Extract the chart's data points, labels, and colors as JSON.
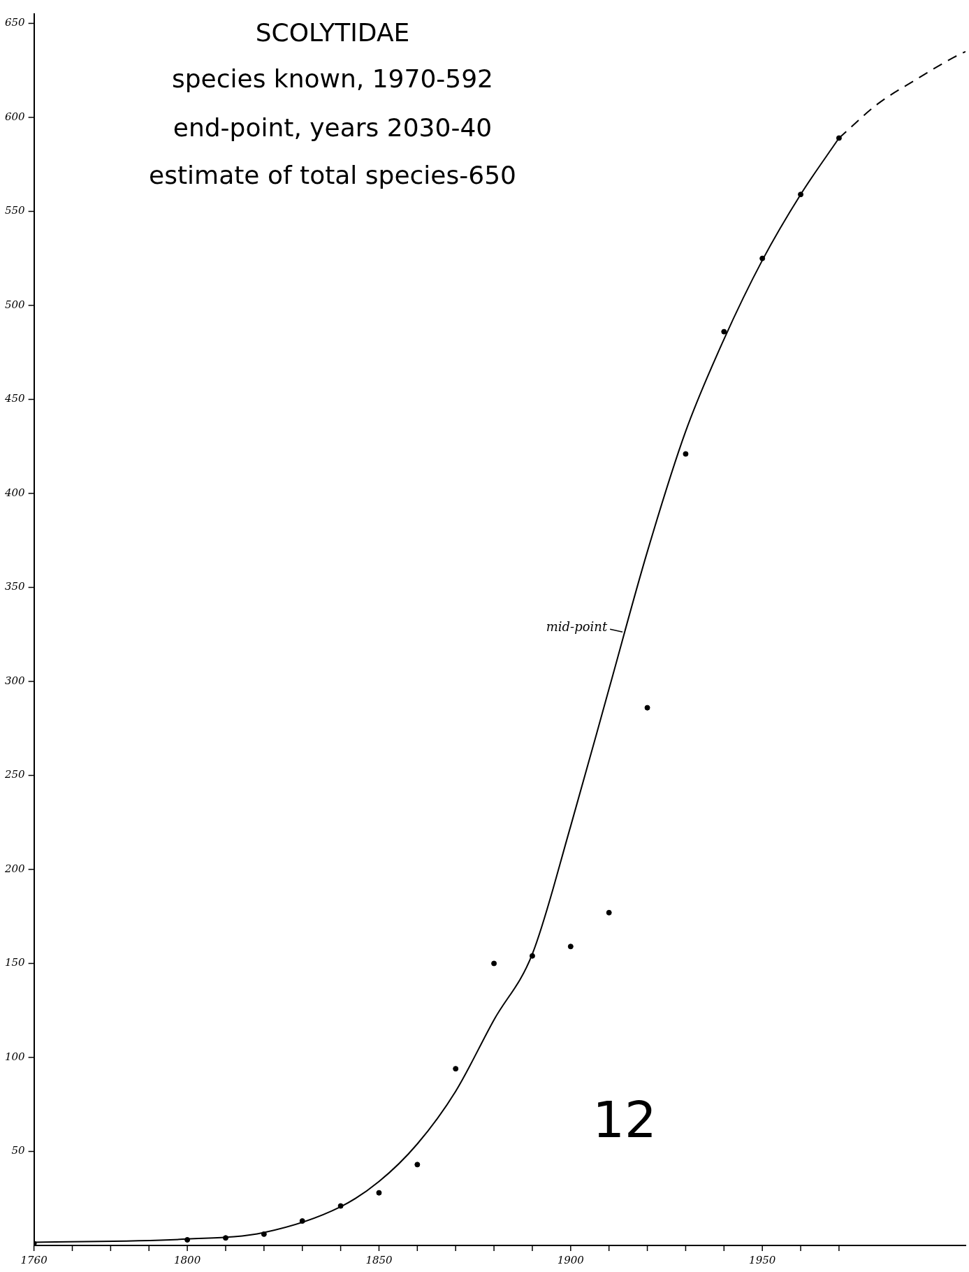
{
  "chart_data": {
    "type": "scatter",
    "title": "SCOLYTIDAE",
    "annotations": [
      "species known, 1970-592",
      "end-point, years 2030-40",
      "estimate of total species-650",
      "12",
      {
        "text": "mid-point",
        "x": 1915,
        "y": 327
      }
    ],
    "xlim": [
      1760,
      2003
    ],
    "xticks": [
      1760,
      {
        "value": 1770,
        "label": null
      },
      {
        "value": 1780,
        "label": null
      },
      {
        "value": 1790,
        "label": null
      },
      1800,
      {
        "value": 1810,
        "label": null
      },
      {
        "value": 1820,
        "label": null
      },
      {
        "value": 1830,
        "label": null
      },
      {
        "value": 1840,
        "label": null
      },
      1850,
      {
        "value": 1860,
        "label": null
      },
      {
        "value": 1870,
        "label": null
      },
      {
        "value": 1880,
        "label": null
      },
      {
        "value": 1890,
        "label": null
      },
      1900,
      {
        "value": 1910,
        "label": null
      },
      {
        "value": 1920,
        "label": null
      },
      {
        "value": 1930,
        "label": null
      },
      {
        "value": 1940,
        "label": null
      },
      1950,
      {
        "value": 1960,
        "label": null
      },
      {
        "value": 1970,
        "label": null
      }
    ],
    "ylim": [
      0,
      655
    ],
    "yticks": [
      50,
      100,
      150,
      200,
      250,
      300,
      350,
      400,
      450,
      500,
      550,
      600,
      650
    ],
    "grid": false,
    "legend": false,
    "series": [
      {
        "type": "line",
        "color": "#000000",
        "marker": "none",
        "line_style": "solid",
        "x": [
          1760,
          1800,
          1820,
          1840,
          1850,
          1860,
          1870,
          1880,
          1890,
          1900,
          1910,
          1920,
          1930,
          1940,
          1950,
          1960,
          1970
        ],
        "values": [
          1.7,
          3.4,
          6.9,
          20.6,
          34,
          54,
          82,
          120,
          155,
          223,
          296,
          369,
          433,
          482,
          524,
          559,
          589
        ]
      },
      {
        "type": "line",
        "color": "#000000",
        "marker": "none",
        "line_style": "dashed",
        "x": [
          1970,
          1980,
          1990,
          2000,
          2003
        ],
        "values": [
          589,
          607,
          620,
          632,
          635
        ]
      },
      {
        "type": "scatter",
        "color": "#000000",
        "marker": "circle",
        "x": [
          1760,
          1800,
          1810,
          1820,
          1830,
          1840,
          1850,
          1860,
          1870,
          1880,
          1890,
          1900,
          1910,
          1920,
          1930,
          1940,
          1950,
          1960,
          1970
        ],
        "values": [
          1,
          3,
          4,
          6,
          13,
          21,
          28,
          43,
          94,
          150,
          154,
          159,
          177,
          286,
          421,
          486,
          525,
          559,
          589
        ]
      }
    ]
  }
}
